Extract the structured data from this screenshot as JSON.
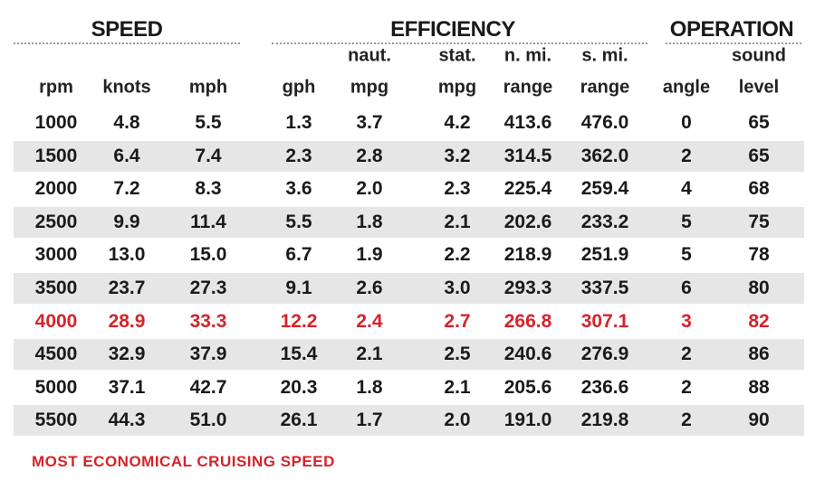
{
  "table": {
    "groups": [
      "SPEED",
      "EFFICIENCY",
      "OPERATION"
    ],
    "columns": [
      [
        "rpm"
      ],
      [
        "knots"
      ],
      [
        "mph"
      ],
      [
        "gph"
      ],
      [
        "naut.",
        "mpg"
      ],
      [
        "stat.",
        "mpg"
      ],
      [
        "n. mi.",
        "range"
      ],
      [
        "s. mi.",
        "range"
      ],
      [
        "angle"
      ],
      [
        "sound",
        "level"
      ]
    ],
    "rows": [
      [
        "1000",
        "4.8",
        "5.5",
        "1.3",
        "3.7",
        "4.2",
        "413.6",
        "476.0",
        "0",
        "65"
      ],
      [
        "1500",
        "6.4",
        "7.4",
        "2.3",
        "2.8",
        "3.2",
        "314.5",
        "362.0",
        "2",
        "65"
      ],
      [
        "2000",
        "7.2",
        "8.3",
        "3.6",
        "2.0",
        "2.3",
        "225.4",
        "259.4",
        "4",
        "68"
      ],
      [
        "2500",
        "9.9",
        "11.4",
        "5.5",
        "1.8",
        "2.1",
        "202.6",
        "233.2",
        "5",
        "75"
      ],
      [
        "3000",
        "13.0",
        "15.0",
        "6.7",
        "1.9",
        "2.2",
        "218.9",
        "251.9",
        "5",
        "78"
      ],
      [
        "3500",
        "23.7",
        "27.3",
        "9.1",
        "2.6",
        "3.0",
        "293.3",
        "337.5",
        "6",
        "80"
      ],
      [
        "4000",
        "28.9",
        "33.3",
        "12.2",
        "2.4",
        "2.7",
        "266.8",
        "307.1",
        "3",
        "82"
      ],
      [
        "4500",
        "32.9",
        "37.9",
        "15.4",
        "2.1",
        "2.5",
        "240.6",
        "276.9",
        "2",
        "86"
      ],
      [
        "5000",
        "37.1",
        "42.7",
        "20.3",
        "1.8",
        "2.1",
        "205.6",
        "236.6",
        "2",
        "88"
      ],
      [
        "5500",
        "44.3",
        "51.0",
        "26.1",
        "1.7",
        "2.0",
        "191.0",
        "219.8",
        "2",
        "90"
      ]
    ],
    "highlight_row": 6,
    "highlight_color": "#d6232a",
    "footnote": "MOST ECONOMICAL CRUISING SPEED"
  }
}
